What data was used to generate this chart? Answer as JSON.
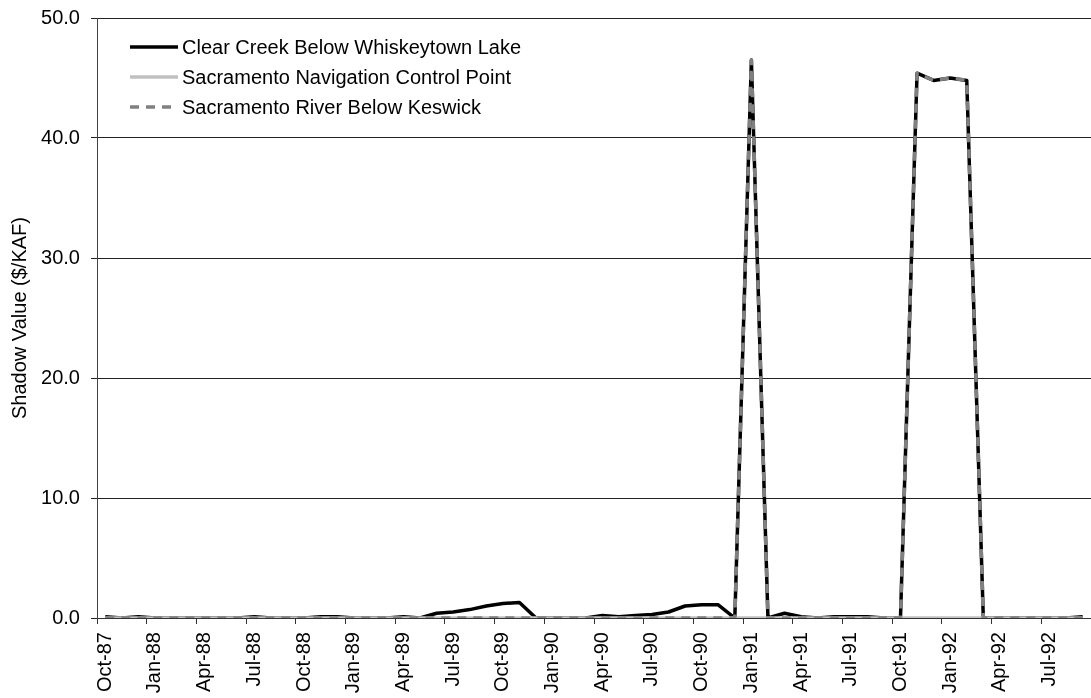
{
  "chart_data": {
    "type": "line",
    "ylabel": "Shadow Value ($/KAF)",
    "categories": [
      "Oct-87",
      null,
      null,
      "Jan-88",
      null,
      null,
      "Apr-88",
      null,
      null,
      "Jul-88",
      null,
      null,
      "Oct-88",
      null,
      null,
      "Jan-89",
      null,
      null,
      "Apr-89",
      null,
      null,
      "Jul-89",
      null,
      null,
      "Oct-89",
      null,
      null,
      "Jan-90",
      null,
      null,
      "Apr-90",
      null,
      null,
      "Jul-90",
      null,
      null,
      "Oct-90",
      null,
      null,
      "Jan-91",
      null,
      null,
      "Apr-91",
      null,
      null,
      "Jul-91",
      null,
      null,
      "Oct-91",
      null,
      null,
      "Jan-92",
      null,
      null,
      "Apr-92",
      null,
      null,
      "Jul-92",
      null,
      null
    ],
    "series": [
      {
        "name": "Clear Creek Below Whiskeytown Lake",
        "color": "#000000",
        "values": [
          0.1,
          0,
          0.1,
          0,
          0,
          0,
          0,
          0,
          0,
          0.1,
          0,
          0,
          0,
          0.1,
          0.1,
          0,
          0,
          0,
          0.1,
          0,
          0.4,
          0.5,
          0.7,
          1.0,
          1.2,
          1.3,
          0,
          0,
          0,
          0,
          0.2,
          0.1,
          0.2,
          0.3,
          0.5,
          1.0,
          1.1,
          1.1,
          0,
          46.5,
          0,
          0.4,
          0.1,
          0,
          0.1,
          0.1,
          0.1,
          0,
          0,
          45.4,
          44.8,
          45.0,
          44.8,
          0,
          0,
          0,
          0,
          0,
          0,
          0.1
        ]
      },
      {
        "name": "Sacramento Navigation Control Point",
        "color": "#c0c0c0",
        "values": [
          0,
          0,
          0,
          0,
          0,
          0,
          0,
          0,
          0,
          0,
          0,
          0,
          0,
          0,
          0,
          0,
          0,
          0,
          0,
          0,
          0,
          0,
          0,
          0,
          0,
          0,
          0,
          0,
          0,
          0,
          0,
          0,
          0,
          0,
          0,
          0,
          0,
          0,
          0,
          0,
          0,
          0,
          0,
          0,
          0,
          0,
          0,
          0,
          0,
          0,
          0,
          0,
          0,
          0,
          0,
          0,
          0,
          0,
          0,
          0
        ]
      },
      {
        "name": "Sacramento River Below Keswick",
        "color": "#808080",
        "line_style": "dashed",
        "values": [
          0,
          0,
          0,
          0,
          0,
          0,
          0,
          0,
          0,
          0,
          0,
          0,
          0,
          0,
          0,
          0,
          0,
          0,
          0,
          0,
          0,
          0,
          0,
          0,
          0,
          0,
          0,
          0,
          0,
          0,
          0,
          0,
          0,
          0,
          0,
          0,
          0,
          0,
          0,
          46.5,
          0,
          0,
          0,
          0,
          0,
          0,
          0,
          0,
          0,
          45.4,
          44.8,
          45.0,
          44.8,
          0,
          0,
          0,
          0,
          0,
          0,
          0
        ]
      }
    ],
    "ylim": [
      0,
      50
    ],
    "yticks": [
      {
        "value": 0,
        "label": "0.0"
      },
      {
        "value": 10,
        "label": "10.0"
      },
      {
        "value": 20,
        "label": "20.0"
      },
      {
        "value": 30,
        "label": "30.0"
      },
      {
        "value": 40,
        "label": "40.0"
      },
      {
        "value": 50,
        "label": "50.0"
      }
    ],
    "grid": "y",
    "legend": "top left",
    "marker": "none",
    "line_style": "solid"
  }
}
